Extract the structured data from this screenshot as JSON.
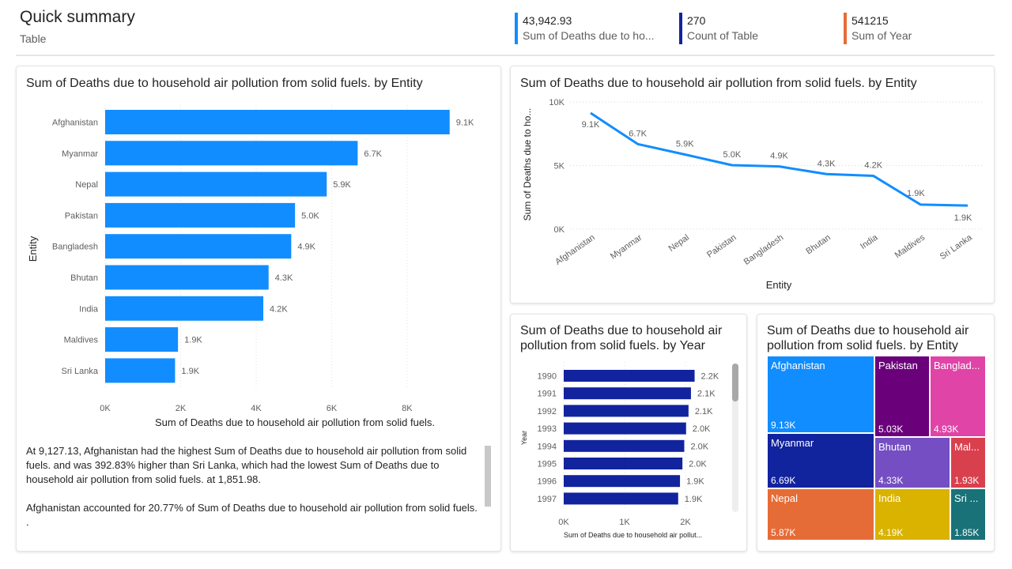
{
  "header": {
    "title": "Quick summary",
    "subtitle": "Table"
  },
  "kpis": [
    {
      "value": "43,942.93",
      "label": "Sum of Deaths due to ho...",
      "color": "#118dff"
    },
    {
      "value": "270",
      "label": "Count of Table",
      "color": "#12239e"
    },
    {
      "value": "541215",
      "label": "Sum of Year",
      "color": "#e66c37"
    }
  ],
  "narrative": {
    "paragraphs": [
      "At 9,127.13, Afghanistan had the highest Sum of Deaths due to household air pollution from solid fuels.  and was 392.83% higher than Sri Lanka, which had the lowest Sum of Deaths due to household air pollution from solid fuels.  at 1,851.98.",
      "Afghanistan accounted for 20.77% of Sum of Deaths due to household air pollution from solid fuels.",
      "."
    ]
  },
  "chart_data": [
    {
      "id": "bar-by-entity",
      "type": "bar",
      "orientation": "horizontal",
      "title": "Sum of Deaths due to household air pollution from solid fuels. by Entity",
      "xlabel": "Sum of Deaths due to household air pollution from solid fuels.",
      "ylabel": "Entity",
      "categories": [
        "Afghanistan",
        "Myanmar",
        "Nepal",
        "Pakistan",
        "Bangladesh",
        "Bhutan",
        "India",
        "Maldives",
        "Sri Lanka"
      ],
      "values": [
        9127.13,
        6690,
        5870,
        5030,
        4930,
        4330,
        4190,
        1930,
        1851.98
      ],
      "data_labels": [
        "9.1K",
        "6.7K",
        "5.9K",
        "5.0K",
        "4.9K",
        "4.3K",
        "4.2K",
        "1.9K",
        "1.9K"
      ],
      "xticks": [
        "0K",
        "2K",
        "4K",
        "6K",
        "8K"
      ],
      "xlim": [
        0,
        9300
      ],
      "grid": true,
      "color": "#118dff"
    },
    {
      "id": "line-by-entity",
      "type": "line",
      "title": "Sum of Deaths due to household air pollution from solid fuels. by Entity",
      "xlabel": "Entity",
      "ylabel": "Sum of Deaths due to ho...",
      "categories": [
        "Afghanistan",
        "Myanmar",
        "Nepal",
        "Pakistan",
        "Bangladesh",
        "Bhutan",
        "India",
        "Maldives",
        "Sri Lanka"
      ],
      "values": [
        9127.13,
        6690,
        5870,
        5030,
        4930,
        4330,
        4190,
        1930,
        1851.98
      ],
      "data_labels": [
        "9.1K",
        "6.7K",
        "5.9K",
        "5.0K",
        "4.9K",
        "4.3K",
        "4.2K",
        "1.9K",
        "1.9K"
      ],
      "yticks": [
        "0K",
        "5K",
        "10K"
      ],
      "ylim": [
        0,
        10000
      ],
      "grid": true,
      "color": "#118dff"
    },
    {
      "id": "bar-by-year",
      "type": "bar",
      "orientation": "horizontal",
      "title": "Sum of Deaths due to household air pollution from solid fuels. by Year",
      "xlabel": "Sum of Deaths due to household air pollut...",
      "ylabel": "Year",
      "categories": [
        "1990",
        "1991",
        "1992",
        "1993",
        "1994",
        "1995",
        "1996",
        "1997"
      ],
      "values": [
        2150,
        2090,
        2050,
        2010,
        1980,
        1950,
        1910,
        1880
      ],
      "data_labels": [
        "2.2K",
        "2.1K",
        "2.1K",
        "2.0K",
        "2.0K",
        "2.0K",
        "1.9K",
        "1.9K"
      ],
      "xticks": [
        "0K",
        "1K",
        "2K"
      ],
      "xlim": [
        0,
        2300
      ],
      "grid": true,
      "color": "#12239e"
    },
    {
      "id": "treemap-by-entity",
      "type": "treemap",
      "title": "Sum of Deaths due to household air pollution from solid fuels. by Entity",
      "items": [
        {
          "name": "Afghanistan",
          "label": "Afghanistan",
          "value": 9130,
          "value_label": "9.13K",
          "color": "#118dff"
        },
        {
          "name": "Myanmar",
          "label": "Myanmar",
          "value": 6690,
          "value_label": "6.69K",
          "color": "#12239e"
        },
        {
          "name": "Nepal",
          "label": "Nepal",
          "value": 5870,
          "value_label": "5.87K",
          "color": "#e66c37"
        },
        {
          "name": "Pakistan",
          "label": "Pakistan",
          "value": 5030,
          "value_label": "5.03K",
          "color": "#6b007b"
        },
        {
          "name": "Bangladesh",
          "label": "Banglad...",
          "value": 4930,
          "value_label": "4.93K",
          "color": "#e044a7"
        },
        {
          "name": "Bhutan",
          "label": "Bhutan",
          "value": 4330,
          "value_label": "4.33K",
          "color": "#744ec2"
        },
        {
          "name": "Maldives",
          "label": "Mal...",
          "value": 1930,
          "value_label": "1.93K",
          "color": "#d9404e"
        },
        {
          "name": "India",
          "label": "India",
          "value": 4190,
          "value_label": "4.19K",
          "color": "#d9b300"
        },
        {
          "name": "Sri Lanka",
          "label": "Sri ...",
          "value": 1850,
          "value_label": "1.85K",
          "color": "#197278"
        }
      ]
    }
  ]
}
